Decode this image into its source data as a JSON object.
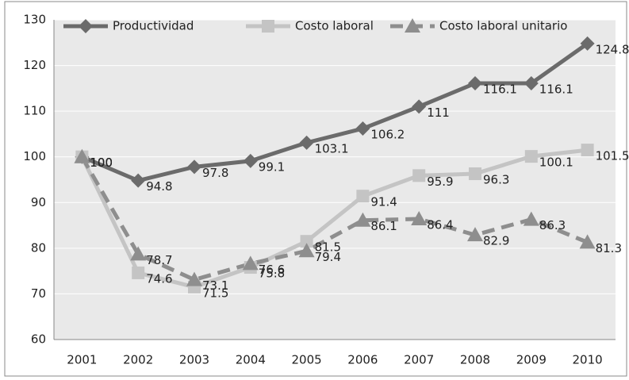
{
  "chart_data": {
    "type": "line",
    "categories": [
      "2001",
      "2002",
      "2003",
      "2004",
      "2005",
      "2006",
      "2007",
      "2008",
      "2009",
      "2010"
    ],
    "series": [
      {
        "name": "Productividad",
        "color": "#6b6b6b",
        "marker": "diamond",
        "dash": false,
        "values": [
          100,
          94.8,
          97.8,
          99.1,
          103.1,
          106.2,
          111,
          116.1,
          116.1,
          124.8
        ]
      },
      {
        "name": "Costo laboral",
        "color": "#c4c4c4",
        "marker": "square",
        "dash": false,
        "values": [
          100,
          74.6,
          71.5,
          75.8,
          81.5,
          91.4,
          95.9,
          96.3,
          100.1,
          101.5
        ]
      },
      {
        "name": "Costo laboral unitario",
        "color": "#8e8e8e",
        "marker": "triangle",
        "dash": true,
        "values": [
          100,
          78.7,
          73.1,
          76.6,
          79.4,
          86.1,
          86.4,
          82.9,
          86.3,
          81.3
        ]
      }
    ],
    "ylim": [
      60,
      130
    ],
    "yticks": [
      60,
      70,
      80,
      90,
      100,
      110,
      120,
      130
    ],
    "grid": true,
    "legend": "top"
  }
}
